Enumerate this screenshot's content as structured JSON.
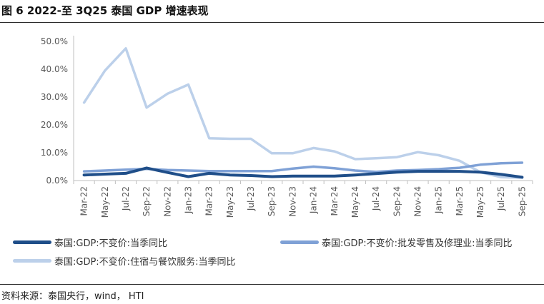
{
  "figure": {
    "title": "图 6  2022-至 3Q25 泰国 GDP 增速表现",
    "source": "资料来源：泰国央行，wind， HTI"
  },
  "colors": {
    "series1": "#1f4e89",
    "series2": "#7fa1d6",
    "series3": "#bcd0ea",
    "axis": "#bfbfbf",
    "tick_text": "#595959"
  },
  "chart_data": {
    "type": "line",
    "title": "",
    "xlabel": "",
    "ylabel": "",
    "ylim": [
      0,
      0.5
    ],
    "yticks": [
      "0.0%",
      "10.0%",
      "20.0%",
      "30.0%",
      "40.0%",
      "50.0%"
    ],
    "grid": false,
    "legend_position": "bottom",
    "categories": [
      "Mar-22",
      "May-22",
      "Jul-22",
      "Sep-22",
      "Nov-22",
      "Jan-23",
      "Mar-23",
      "May-23",
      "Jul-23",
      "Sep-23",
      "Nov-23",
      "Jan-24",
      "Mar-24",
      "May-24",
      "Jul-24",
      "Sep-24",
      "Nov-24",
      "Jan-25",
      "Mar-25",
      "May-25",
      "Jul-25",
      "Sep-25"
    ],
    "series": [
      {
        "name": "泰国:GDP:不变价:当季同比",
        "color_key": "series1",
        "values": [
          0.02,
          0.023,
          0.026,
          0.045,
          0.029,
          0.014,
          0.026,
          0.02,
          0.018,
          0.014,
          0.016,
          0.016,
          0.016,
          0.02,
          0.025,
          0.03,
          0.033,
          0.033,
          0.033,
          0.03,
          0.022,
          0.012
        ]
      },
      {
        "name": "泰国:GDP:不变价:批发零售及修理业:当季同比",
        "color_key": "series2",
        "values": [
          0.033,
          0.036,
          0.039,
          0.042,
          0.038,
          0.036,
          0.034,
          0.034,
          0.034,
          0.034,
          0.043,
          0.05,
          0.044,
          0.036,
          0.031,
          0.036,
          0.038,
          0.041,
          0.046,
          0.057,
          0.062,
          0.064
        ]
      },
      {
        "name": "泰国:GDP:不变价:住宿与餐饮服务:当季同比",
        "color_key": "series3",
        "values": [
          0.28,
          0.395,
          0.475,
          0.262,
          0.312,
          0.345,
          0.152,
          0.15,
          0.15,
          0.098,
          0.098,
          0.117,
          0.105,
          0.077,
          0.08,
          0.084,
          0.102,
          0.091,
          0.071,
          0.03,
          0.012,
          0.01
        ]
      }
    ]
  }
}
